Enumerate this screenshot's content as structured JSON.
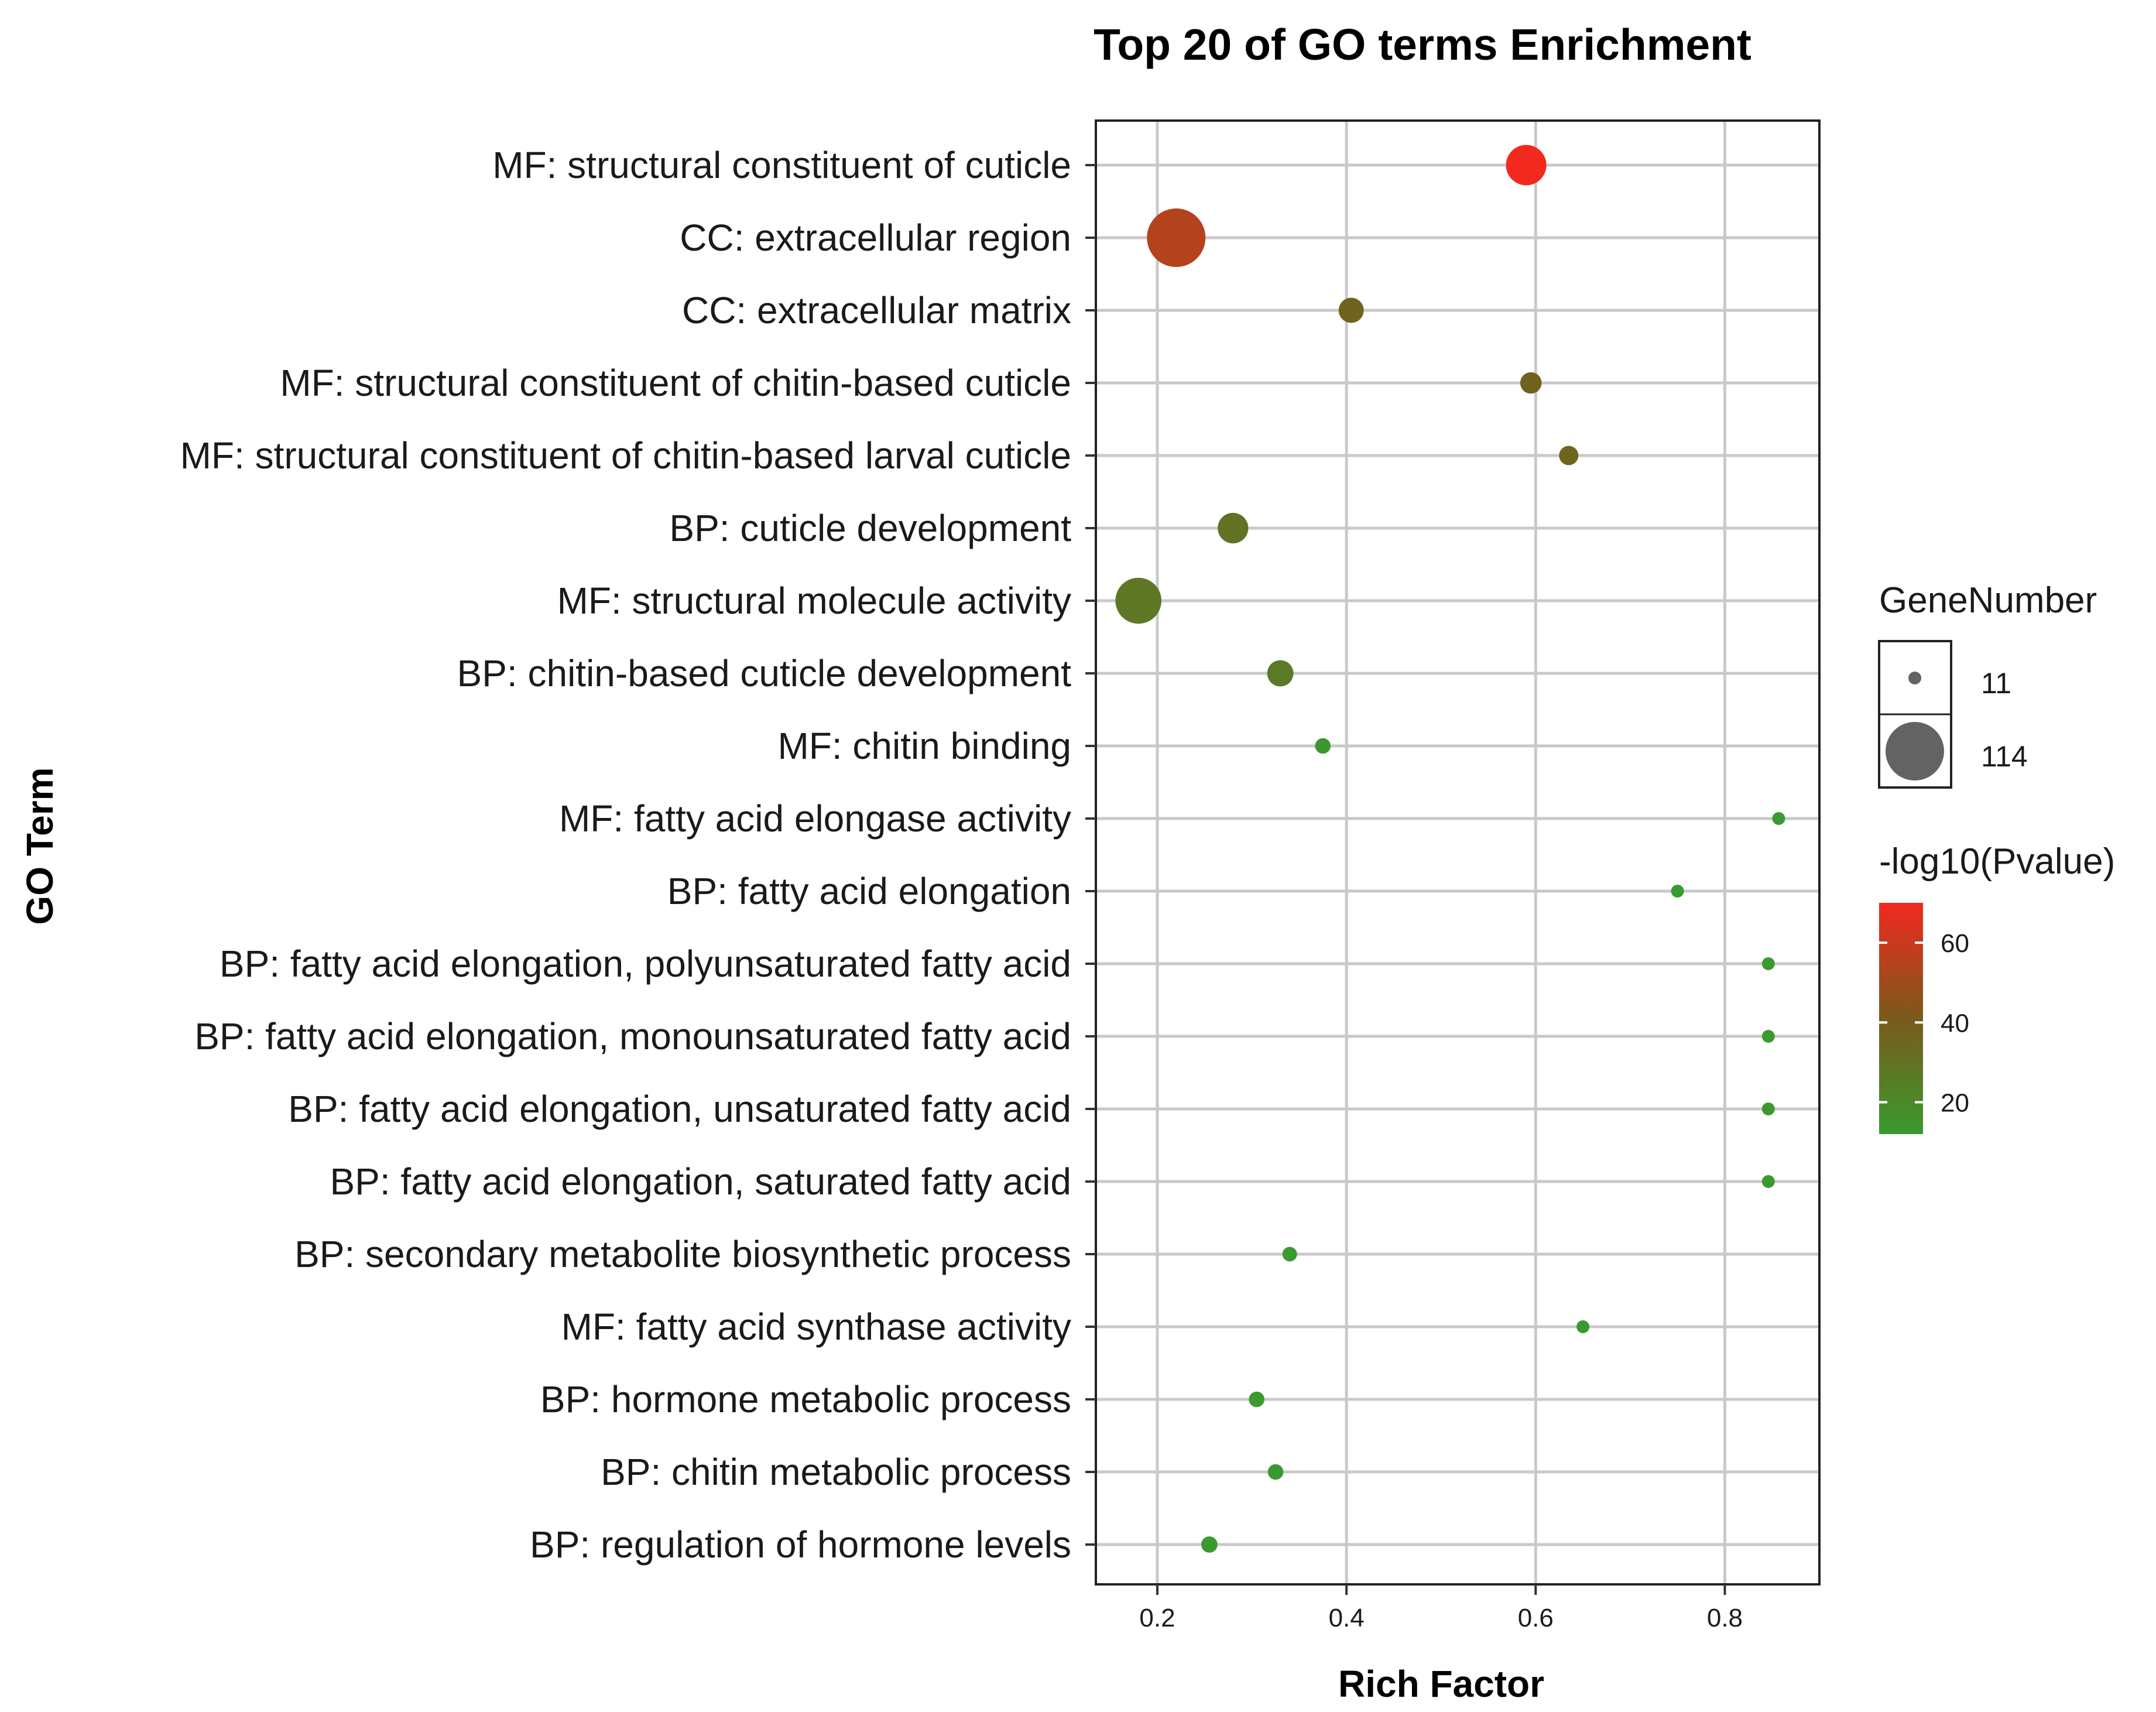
{
  "chart_data": {
    "type": "scatter",
    "title": "Top 20 of GO terms Enrichment",
    "xlabel": "Rich Factor",
    "ylabel": "GO Term",
    "xlim": [
      0.135,
      0.9
    ],
    "xticks": [
      0.2,
      0.4,
      0.6,
      0.8
    ],
    "xtick_labels": [
      "0.2",
      "0.4",
      "0.6",
      "0.8"
    ],
    "grid": true,
    "points": [
      {
        "term": "MF: structural constituent of cuticle",
        "rich_factor": 0.59,
        "gene_number": 60,
        "neg_log10_p": 70
      },
      {
        "term": "CC: extracellular region",
        "rich_factor": 0.22,
        "gene_number": 114,
        "neg_log10_p": 55
      },
      {
        "term": "CC: extracellular matrix",
        "rich_factor": 0.405,
        "gene_number": 28,
        "neg_log10_p": 37
      },
      {
        "term": "MF: structural constituent of chitin-based cuticle",
        "rich_factor": 0.595,
        "gene_number": 22,
        "neg_log10_p": 37
      },
      {
        "term": "MF: structural constituent of chitin-based larval cuticle",
        "rich_factor": 0.635,
        "gene_number": 19,
        "neg_log10_p": 36
      },
      {
        "term": "BP: cuticle development",
        "rich_factor": 0.28,
        "gene_number": 38,
        "neg_log10_p": 30
      },
      {
        "term": "MF: structural molecule activity",
        "rich_factor": 0.18,
        "gene_number": 75,
        "neg_log10_p": 28
      },
      {
        "term": "BP: chitin-based cuticle development",
        "rich_factor": 0.33,
        "gene_number": 30,
        "neg_log10_p": 26
      },
      {
        "term": "MF: chitin binding",
        "rich_factor": 0.375,
        "gene_number": 14,
        "neg_log10_p": 13
      },
      {
        "term": "MF: fatty acid elongase activity",
        "rich_factor": 0.857,
        "gene_number": 11,
        "neg_log10_p": 12
      },
      {
        "term": "BP: fatty acid elongation",
        "rich_factor": 0.75,
        "gene_number": 11,
        "neg_log10_p": 12
      },
      {
        "term": "BP: fatty acid elongation, polyunsaturated fatty acid",
        "rich_factor": 0.846,
        "gene_number": 11,
        "neg_log10_p": 12
      },
      {
        "term": "BP: fatty acid elongation, monounsaturated fatty acid",
        "rich_factor": 0.846,
        "gene_number": 11,
        "neg_log10_p": 12
      },
      {
        "term": "BP: fatty acid elongation, unsaturated fatty acid",
        "rich_factor": 0.846,
        "gene_number": 11,
        "neg_log10_p": 12
      },
      {
        "term": "BP: fatty acid elongation, saturated fatty acid",
        "rich_factor": 0.846,
        "gene_number": 11,
        "neg_log10_p": 12
      },
      {
        "term": "BP: secondary metabolite biosynthetic process",
        "rich_factor": 0.34,
        "gene_number": 13,
        "neg_log10_p": 12
      },
      {
        "term": "MF: fatty acid synthase activity",
        "rich_factor": 0.65,
        "gene_number": 11,
        "neg_log10_p": 12
      },
      {
        "term": "BP: hormone metabolic process",
        "rich_factor": 0.305,
        "gene_number": 14,
        "neg_log10_p": 12
      },
      {
        "term": "BP: chitin metabolic process",
        "rich_factor": 0.325,
        "gene_number": 14,
        "neg_log10_p": 12
      },
      {
        "term": "BP: regulation of hormone levels",
        "rich_factor": 0.255,
        "gene_number": 15,
        "neg_log10_p": 12
      }
    ],
    "size_legend": {
      "title": "GeneNumber",
      "values": [
        11,
        114
      ],
      "labels": [
        "11",
        "114"
      ]
    },
    "color_legend": {
      "title": "-log10(Pvalue)",
      "range": [
        12,
        70
      ],
      "ticks": [
        20,
        40,
        60
      ],
      "tick_labels": [
        "20",
        "40",
        "60"
      ],
      "low_color": "#3a9a2f",
      "mid_color": "#7a5a1c",
      "high_color": "#f2291e"
    }
  }
}
